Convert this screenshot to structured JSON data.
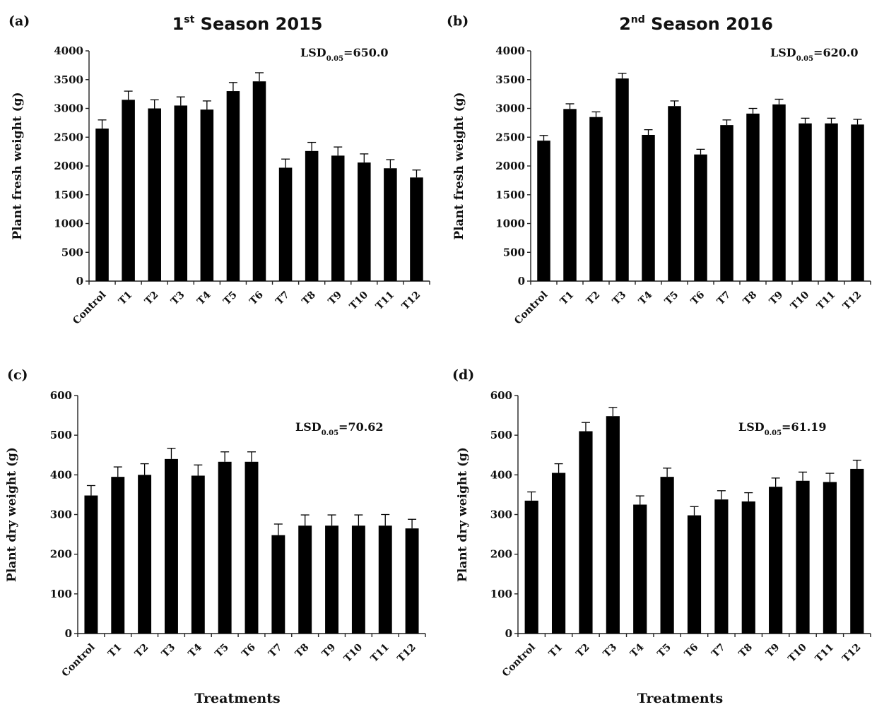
{
  "chart_data": [
    {
      "panel": "(a)",
      "type": "bar",
      "title": {
        "prefix": "1",
        "sup": "st",
        "suffix": " Season 2015"
      },
      "ylabel": "Plant fresh weight (g)",
      "xlabel": "",
      "ylim": [
        0,
        4000
      ],
      "yticks": [
        0,
        500,
        1000,
        1500,
        2000,
        2500,
        3000,
        3500,
        4000
      ],
      "annotation": {
        "prefix": "LSD",
        "sub": "0.05",
        "suffix": "=650.0"
      },
      "categories": [
        "Control",
        "T1",
        "T2",
        "T3",
        "T4",
        "T5",
        "T6",
        "T7",
        "T8",
        "T9",
        "T10",
        "T11",
        "T12"
      ],
      "values": [
        2650,
        3150,
        3000,
        3050,
        2980,
        3300,
        3470,
        1970,
        2260,
        2180,
        2060,
        1960,
        1800
      ],
      "errors": [
        150,
        150,
        150,
        150,
        150,
        150,
        150,
        150,
        150,
        150,
        150,
        150,
        130
      ],
      "grid": false
    },
    {
      "panel": "(b)",
      "type": "bar",
      "title": {
        "prefix": "2",
        "sup": "nd",
        "suffix": " Season 2016"
      },
      "ylabel": "Plant fresh weight  (g)",
      "xlabel": "",
      "ylim": [
        0,
        4000
      ],
      "yticks": [
        0,
        500,
        1000,
        1500,
        2000,
        2500,
        3000,
        3500,
        4000
      ],
      "annotation": {
        "prefix": "LSD",
        "sub": "0.05",
        "suffix": "=620.0"
      },
      "categories": [
        "Control",
        "T1",
        "T2",
        "T3",
        "T4",
        "T5",
        "T6",
        "T7",
        "T8",
        "T9",
        "T10",
        "T11",
        "T12"
      ],
      "values": [
        2440,
        2990,
        2850,
        3520,
        2540,
        3040,
        2200,
        2710,
        2910,
        3070,
        2740,
        2740,
        2720
      ],
      "errors": [
        90,
        90,
        90,
        90,
        90,
        90,
        90,
        90,
        90,
        90,
        90,
        90,
        90
      ],
      "grid": false
    },
    {
      "panel": "(c)",
      "type": "bar",
      "title": null,
      "ylabel": "Plant dry weight (g)",
      "xlabel": "Treatments",
      "ylim": [
        0,
        600
      ],
      "yticks": [
        0,
        100,
        200,
        300,
        400,
        500,
        600
      ],
      "annotation": {
        "prefix": "LSD",
        "sub": "0.05",
        "suffix": "=70.62"
      },
      "categories": [
        "Control",
        "T1",
        "T2",
        "T3",
        "T4",
        "T5",
        "T6",
        "T7",
        "T8",
        "T9",
        "T10",
        "T11",
        "T12"
      ],
      "values": [
        348,
        395,
        400,
        440,
        398,
        433,
        433,
        248,
        272,
        272,
        272,
        272,
        265
      ],
      "errors": [
        25,
        25,
        28,
        27,
        27,
        25,
        25,
        28,
        27,
        27,
        27,
        28,
        23
      ],
      "grid": false
    },
    {
      "panel": "(d)",
      "type": "bar",
      "title": null,
      "ylabel": "Plant dry weight (g)",
      "xlabel": "Treatments",
      "ylim": [
        0,
        600
      ],
      "yticks": [
        0,
        100,
        200,
        300,
        400,
        500,
        600
      ],
      "annotation": {
        "prefix": "LSD",
        "sub": "0.05",
        "suffix": "=61.19"
      },
      "categories": [
        "Control",
        "T1",
        "T2",
        "T3",
        "T4",
        "T5",
        "T6",
        "T7",
        "T8",
        "T9",
        "T10",
        "T11",
        "T12"
      ],
      "values": [
        335,
        405,
        510,
        548,
        325,
        395,
        298,
        338,
        333,
        370,
        385,
        382,
        415
      ],
      "errors": [
        22,
        23,
        22,
        22,
        22,
        22,
        22,
        22,
        22,
        22,
        22,
        22,
        22
      ],
      "grid": false
    }
  ]
}
